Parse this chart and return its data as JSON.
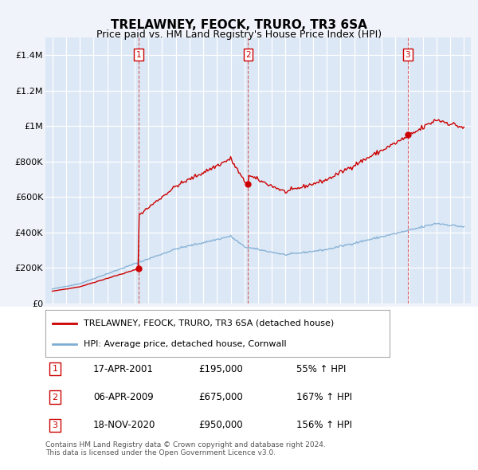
{
  "title": "TRELAWNEY, FEOCK, TRURO, TR3 6SA",
  "subtitle": "Price paid vs. HM Land Registry's House Price Index (HPI)",
  "ylim": [
    0,
    1500000
  ],
  "yticks": [
    0,
    200000,
    400000,
    600000,
    800000,
    1000000,
    1200000,
    1400000
  ],
  "ytick_labels": [
    "£0",
    "£200K",
    "£400K",
    "£600K",
    "£800K",
    "£1M",
    "£1.2M",
    "£1.4M"
  ],
  "sale_color": "#cc0000",
  "hpi_color": "#7eadd4",
  "vline_color": "#cc0000",
  "background_color": "#f0f4fa",
  "plot_bg_color": "#dce8f5",
  "grid_color": "#ffffff",
  "sales": [
    {
      "date_num": 2001.29,
      "price": 195000,
      "label": "1"
    },
    {
      "date_num": 2009.27,
      "price": 675000,
      "label": "2"
    },
    {
      "date_num": 2020.89,
      "price": 950000,
      "label": "3"
    }
  ],
  "legend_entries": [
    {
      "label": "TRELAWNEY, FEOCK, TRURO, TR3 6SA (detached house)",
      "color": "#cc0000"
    },
    {
      "label": "HPI: Average price, detached house, Cornwall",
      "color": "#7eadd4"
    }
  ],
  "table_rows": [
    {
      "num": "1",
      "date": "17-APR-2001",
      "price": "£195,000",
      "pct": "55% ↑ HPI"
    },
    {
      "num": "2",
      "date": "06-APR-2009",
      "price": "£675,000",
      "pct": "167% ↑ HPI"
    },
    {
      "num": "3",
      "date": "18-NOV-2020",
      "price": "£950,000",
      "pct": "156% ↑ HPI"
    }
  ],
  "footnote": "Contains HM Land Registry data © Crown copyright and database right 2024.\nThis data is licensed under the Open Government Licence v3.0.",
  "xmin": 1994.5,
  "xmax": 2025.5
}
